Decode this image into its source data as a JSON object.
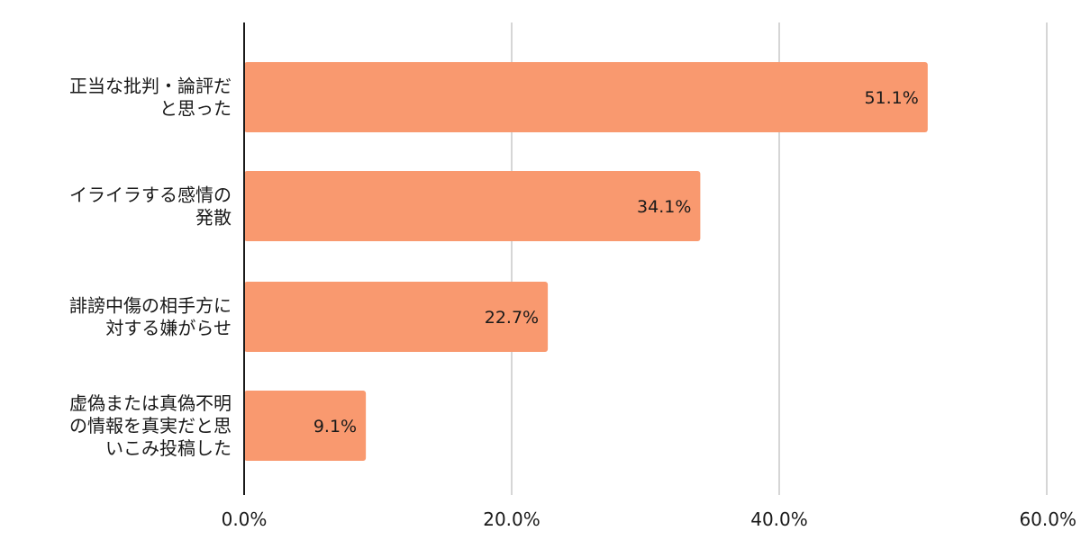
{
  "chart_data": {
    "type": "bar",
    "orientation": "horizontal",
    "title": "",
    "xlabel": "",
    "ylabel": "",
    "categories": [
      [
        "正当な批判・論評だ",
        "と思った"
      ],
      [
        "イライラする感情の",
        "発散"
      ],
      [
        "誹謗中傷の相手方に",
        "対する嫌がらせ"
      ],
      [
        "虚偽または真偽不明",
        "の情報を真実だと思",
        "いこみ投稿した"
      ]
    ],
    "values": [
      51.1,
      34.1,
      22.7,
      9.1
    ],
    "value_labels": [
      "51.1%",
      "34.1%",
      "22.7%",
      "9.1%"
    ],
    "xlim": [
      0,
      60
    ],
    "x_ticks": [
      0,
      20,
      40,
      60
    ],
    "x_tick_labels": [
      "0.0%",
      "20.0%",
      "40.0%",
      "60.0%"
    ],
    "grid": true,
    "legend": "none",
    "colors": {
      "bar": "#F9996F",
      "grid": "#c8c8c8",
      "axis": "#1a1a1a"
    }
  }
}
